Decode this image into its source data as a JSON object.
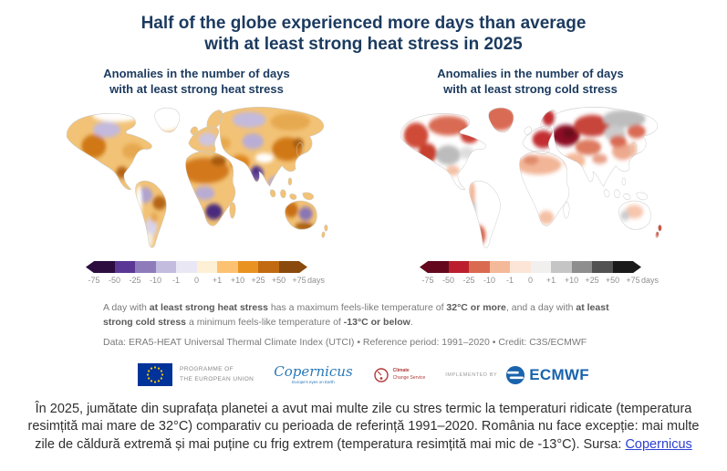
{
  "title": {
    "line1": "Half of the globe experienced more days than average",
    "line2": "with at least strong heat stress in 2025"
  },
  "maps": {
    "heat": {
      "title_line1": "Anomalies in the number of days",
      "title_line2": "with at least strong heat stress"
    },
    "cold": {
      "title_line1": "Anomalies in the number of days",
      "title_line2": "with at least strong cold stress"
    }
  },
  "scale": {
    "ticks": [
      "-75",
      "-50",
      "-25",
      "-10",
      "-1",
      "0",
      "+1",
      "+10",
      "+25",
      "+50",
      "+75"
    ],
    "unit": "days",
    "heat_colors": [
      "#2d0d3f",
      "#5a3795",
      "#8e7cba",
      "#c4bcde",
      "#e9e7f3",
      "#fdf0d4",
      "#fdc271",
      "#ea9221",
      "#c16a12",
      "#8a4a0e"
    ],
    "cold_colors": [
      "#64091d",
      "#bb1f2d",
      "#d96a50",
      "#f4b999",
      "#fce5d6",
      "#f1f0ee",
      "#c5c5c5",
      "#8e8e8e",
      "#525252",
      "#1a1a1a"
    ]
  },
  "note": {
    "parts": [
      "A day with ",
      "at least strong heat stress",
      " has a maximum feels-like temperature of ",
      "32°C or more",
      ", and a day with ",
      "at least strong cold stress",
      " a minimum feels-like temperature of ",
      "-13°C or below",
      "."
    ]
  },
  "source_line": "Data: ERA5-HEAT Universal Thermal Climate Index (UTCI) • Reference period: 1991–2020 • Credit: C3S/ECMWF",
  "logos": {
    "eu_line1": "PROGRAMME OF",
    "eu_line2": "THE EUROPEAN UNION",
    "copernicus_name": "Copernicus",
    "copernicus_tagline": "Europe's eyes on Earth",
    "c3s_line1": "Climate",
    "c3s_line2": "Change Service",
    "implemented_by": "IMPLEMENTED BY",
    "ecmwf_name": "ECMWF"
  },
  "colors": {
    "navy_title": "#1b3a5f",
    "footnote_gray": "#7a7a7a",
    "tick_gray": "#8f8f8f",
    "ecmwf_blue": "#1a63ad",
    "link_blue": "#2b3fd4"
  },
  "caption": {
    "text": "În 2025, jumătate din suprafața planetei a avut mai multe zile cu stres termic la temperaturi ridicate (temperatura resimțită mai mare de 32°C) comparativ cu perioada de referință 1991–2020. România nu face excepție: mai multe zile de căldură extremă și mai puține cu frig extrem (temperatura resimțită mai mic de -13°C). Sursa: ",
    "link": "Copernicus"
  },
  "chart_data": [
    {
      "type": "heatmap",
      "title": "Anomalies in the number of days with at least strong heat stress",
      "unit": "days",
      "scale_bin_edges": [
        -75,
        -50,
        -25,
        -10,
        -1,
        0,
        1,
        10,
        25,
        50,
        75
      ],
      "legend_position": "bottom",
      "region_values_estimate": {
        "north_africa_sahara": "+25 to +75",
        "middle_east": "+10 to +50",
        "india": "-25 to -75",
        "southern_africa": "-50 to -75",
        "equatorial_africa": "-1 to -25",
        "east_asia_china": "+10 to +50",
        "southeast_asia": "-10 to -25",
        "europe": "mixed -10 to +25",
        "western_north_america": "+10 to +50",
        "northern_canada": "-1 to -10",
        "eastern_usa_mexico": "+10 to +50",
        "amazon_west": "-10 to -25",
        "eastern_brazil": "+25 to +50",
        "argentina": "-1 to +10",
        "australia": "mixed -25 to +50",
        "greenland_arctic": "no data"
      }
    },
    {
      "type": "heatmap",
      "title": "Anomalies in the number of days with at least strong cold stress",
      "unit": "days",
      "scale_bin_edges": [
        -75,
        -50,
        -25,
        -10,
        -1,
        0,
        1,
        10,
        25,
        50,
        75
      ],
      "legend_position": "bottom",
      "region_values_estimate": {
        "eastern_europe_western_russia": "-50 to -75",
        "europe": "-25 to -50",
        "alaska_western_canada": "-25 to -50",
        "central_north_america": "+1 to +25",
        "greenland": "-10 to -50",
        "siberia": "mixed +1 to +25 and -10 to -25",
        "central_asia": "-10 to -25",
        "north_africa": "-1 to -10",
        "tropics": "0 (no cold stress)",
        "patagonia_andes": "mixed -25 and +10",
        "australia": "-1 to +10",
        "new_zealand": "-25 to -50"
      }
    }
  ]
}
